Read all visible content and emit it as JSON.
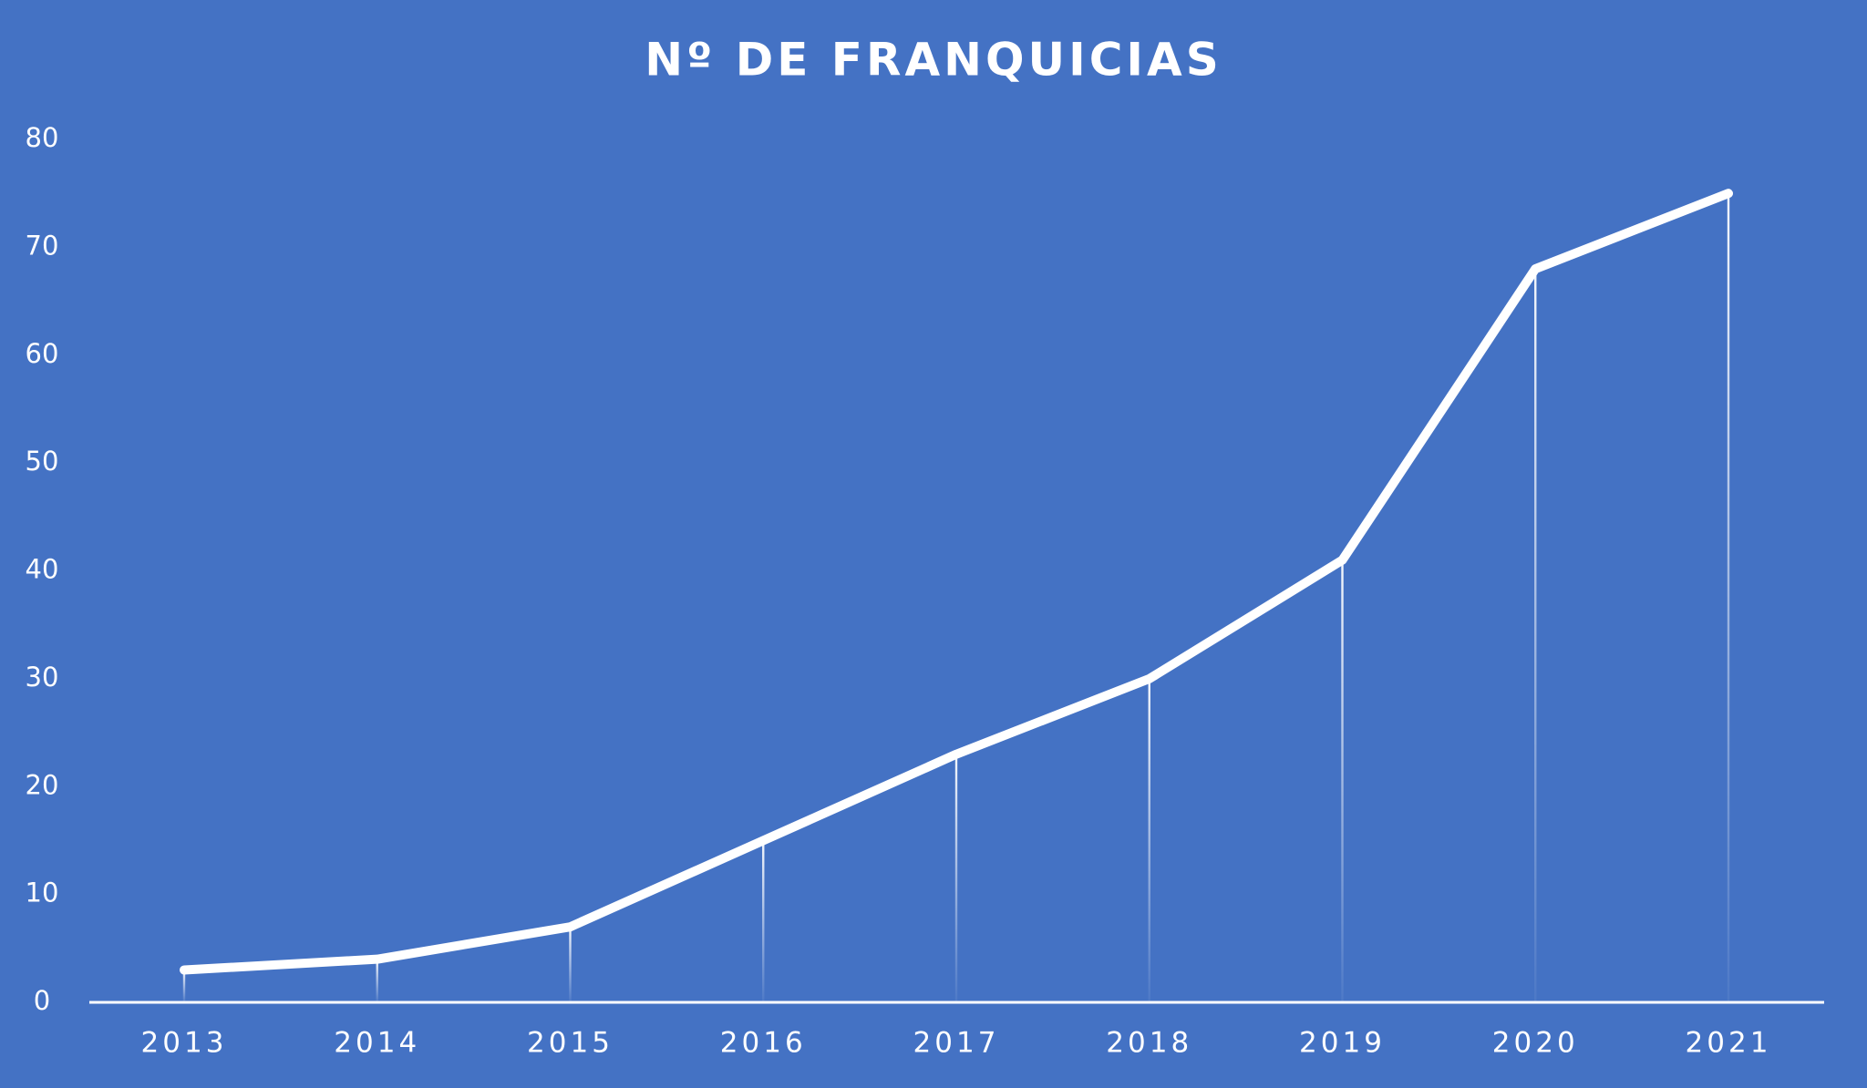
{
  "chart_data": {
    "type": "line",
    "title": "Nº DE FRANQUICIAS",
    "categories": [
      "2013",
      "2014",
      "2015",
      "2016",
      "2017",
      "2018",
      "2019",
      "2020",
      "2021"
    ],
    "values": [
      3,
      4,
      7,
      15,
      23,
      30,
      41,
      68,
      75
    ],
    "color": "#ffffff",
    "ylim": [
      0,
      80
    ],
    "yticks": [
      0,
      10,
      20,
      30,
      40,
      50,
      60,
      70,
      80
    ],
    "grid": false
  }
}
